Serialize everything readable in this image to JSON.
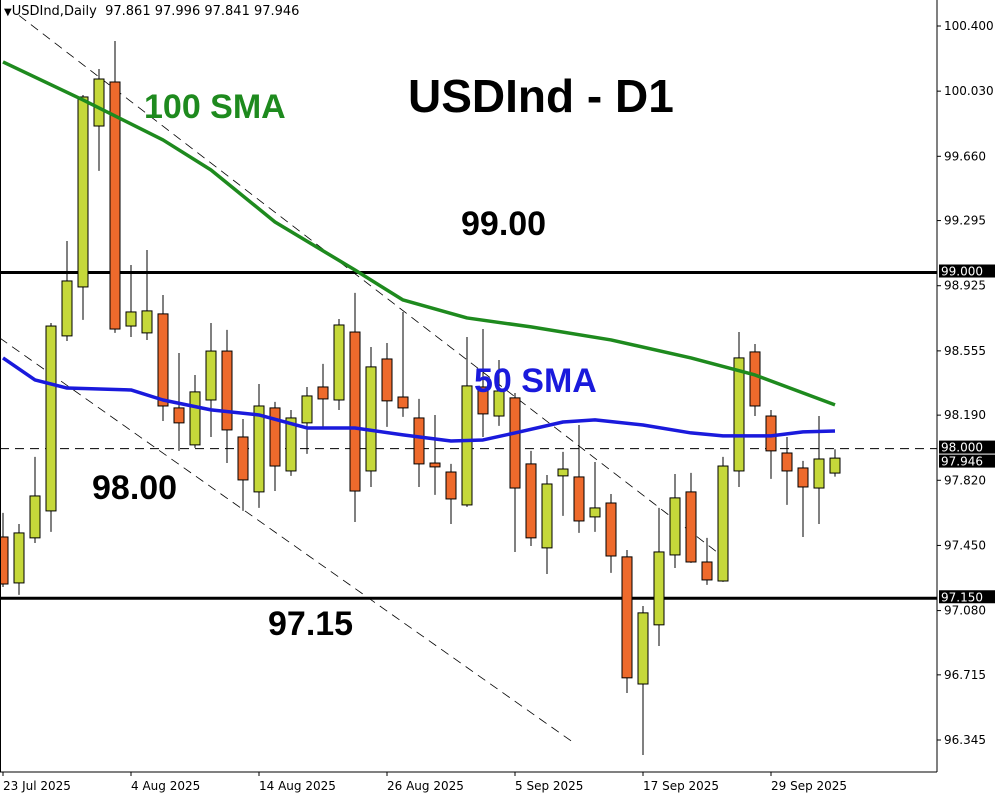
{
  "header": {
    "symbol": "USDInd,Daily",
    "ohlc": "97.861 97.996 97.841 97.946",
    "menu_icon": "triangle-down-icon"
  },
  "chart_data": {
    "type": "candlestick",
    "title": "USDInd - D1",
    "colors": {
      "bull": "#c5d83a",
      "bear": "#ee6a2c",
      "sma100": "#1e8a1e",
      "sma50": "#1a1adc"
    },
    "ylim": [
      96.345,
      100.4
    ],
    "y_ticks": [
      "100.400",
      "100.030",
      "99.660",
      "99.295",
      "98.925",
      "98.555",
      "98.190",
      "97.820",
      "97.450",
      "97.080",
      "96.715",
      "96.345"
    ],
    "x_ticks": [
      {
        "i": 0,
        "label": "23 Jul 2025"
      },
      {
        "i": 8,
        "label": "4 Aug 2025"
      },
      {
        "i": 16,
        "label": "14 Aug 2025"
      },
      {
        "i": 24,
        "label": "26 Aug 2025"
      },
      {
        "i": 32,
        "label": "5 Sep 2025"
      },
      {
        "i": 40,
        "label": "17 Sep 2025"
      },
      {
        "i": 48,
        "label": "29 Sep 2025"
      }
    ],
    "candles": [
      [
        97.498,
        97.635,
        97.214,
        97.231
      ],
      [
        97.237,
        97.572,
        97.169,
        97.521
      ],
      [
        97.493,
        97.953,
        97.464,
        97.731
      ],
      [
        97.646,
        98.713,
        97.527,
        98.696
      ],
      [
        98.64,
        99.179,
        98.611,
        98.952
      ],
      [
        98.918,
        100.008,
        98.731,
        99.997
      ],
      [
        99.832,
        100.156,
        99.577,
        100.099
      ],
      [
        100.082,
        100.315,
        98.657,
        98.679
      ],
      [
        98.696,
        99.043,
        98.634,
        98.776
      ],
      [
        98.657,
        99.128,
        98.617,
        98.782
      ],
      [
        98.765,
        98.872,
        98.157,
        98.242
      ],
      [
        98.231,
        98.543,
        97.987,
        98.146
      ],
      [
        98.021,
        98.418,
        98.004,
        98.322
      ],
      [
        98.276,
        98.713,
        98.066,
        98.554
      ],
      [
        98.554,
        98.674,
        97.918,
        98.106
      ],
      [
        98.066,
        98.168,
        97.646,
        97.822
      ],
      [
        97.754,
        98.367,
        97.663,
        98.242
      ],
      [
        98.231,
        98.265,
        97.759,
        97.901
      ],
      [
        97.873,
        98.219,
        97.845,
        98.174
      ],
      [
        98.146,
        98.35,
        97.97,
        98.299
      ],
      [
        98.35,
        98.481,
        98.123,
        98.282
      ],
      [
        98.276,
        98.736,
        98.219,
        98.702
      ],
      [
        98.662,
        98.884,
        97.583,
        97.759
      ],
      [
        97.873,
        98.577,
        97.782,
        98.464
      ],
      [
        98.509,
        98.6,
        98.123,
        98.271
      ],
      [
        98.293,
        98.776,
        98.18,
        98.231
      ],
      [
        98.174,
        98.282,
        97.782,
        97.913
      ],
      [
        97.918,
        98.191,
        97.737,
        97.896
      ],
      [
        97.867,
        97.913,
        97.572,
        97.714
      ],
      [
        97.68,
        98.634,
        97.669,
        98.356
      ],
      [
        98.35,
        98.679,
        98.066,
        98.197
      ],
      [
        98.185,
        98.503,
        98.129,
        98.327
      ],
      [
        98.288,
        98.316,
        97.413,
        97.776
      ],
      [
        97.913,
        97.987,
        97.447,
        97.493
      ],
      [
        97.436,
        97.85,
        97.288,
        97.799
      ],
      [
        97.845,
        97.981,
        97.618,
        97.884
      ],
      [
        97.839,
        98.134,
        97.521,
        97.589
      ],
      [
        97.612,
        97.924,
        97.527,
        97.663
      ],
      [
        97.691,
        97.742,
        97.294,
        97.39
      ],
      [
        97.385,
        97.424,
        96.612,
        96.698
      ],
      [
        96.663,
        97.106,
        96.26,
        97.067
      ],
      [
        96.999,
        97.663,
        96.879,
        97.413
      ],
      [
        97.396,
        97.856,
        97.322,
        97.72
      ],
      [
        97.754,
        97.862,
        97.351,
        97.356
      ],
      [
        97.356,
        97.493,
        97.226,
        97.254
      ],
      [
        97.248,
        97.953,
        97.243,
        97.901
      ],
      [
        97.873,
        98.662,
        97.782,
        98.515
      ],
      [
        98.549,
        98.594,
        98.185,
        98.242
      ],
      [
        98.185,
        98.219,
        97.828,
        97.987
      ],
      [
        97.975,
        98.066,
        97.68,
        97.873
      ],
      [
        97.89,
        97.93,
        97.498,
        97.782
      ],
      [
        97.776,
        98.185,
        97.572,
        97.941
      ],
      [
        97.861,
        97.996,
        97.841,
        97.946
      ]
    ],
    "sma100": [
      [
        0,
        100.196
      ],
      [
        5,
        99.98
      ],
      [
        10,
        99.753
      ],
      [
        13,
        99.582
      ],
      [
        17,
        99.287
      ],
      [
        22,
        99.014
      ],
      [
        25,
        98.844
      ],
      [
        29,
        98.742
      ],
      [
        33,
        98.691
      ],
      [
        38,
        98.617
      ],
      [
        43,
        98.515
      ],
      [
        47,
        98.418
      ],
      [
        52,
        98.248
      ]
    ],
    "sma50": [
      [
        0,
        98.515
      ],
      [
        2,
        98.39
      ],
      [
        4,
        98.344
      ],
      [
        8,
        98.333
      ],
      [
        10,
        98.276
      ],
      [
        13,
        98.22
      ],
      [
        16,
        98.191
      ],
      [
        19,
        98.117
      ],
      [
        22,
        98.117
      ],
      [
        25,
        98.078
      ],
      [
        28,
        98.043
      ],
      [
        30,
        98.049
      ],
      [
        32,
        98.089
      ],
      [
        35,
        98.151
      ],
      [
        37,
        98.163
      ],
      [
        40,
        98.134
      ],
      [
        43,
        98.089
      ],
      [
        45,
        98.072
      ],
      [
        48,
        98.072
      ],
      [
        50,
        98.095
      ],
      [
        52,
        98.1
      ]
    ],
    "levels": [
      {
        "price": 99.0,
        "label": "99.000",
        "style": "solid"
      },
      {
        "price": 98.0,
        "label": "98.000",
        "style": "dashed"
      },
      {
        "price": 97.15,
        "label": "97.150",
        "style": "solid"
      }
    ],
    "current_price_label": "97.946",
    "trendlines": [
      [
        [
          1,
          100.46
        ],
        [
          44.7,
          97.407
        ]
      ],
      [
        [
          -0.2,
          98.628
        ],
        [
          35.6,
          96.334
        ]
      ]
    ],
    "annotations": {
      "title": "USDInd - D1",
      "sma100": "100 SMA",
      "sma50": "50 SMA",
      "level_99": "99.00",
      "level_98": "98.00",
      "level_9715": "97.15"
    }
  }
}
